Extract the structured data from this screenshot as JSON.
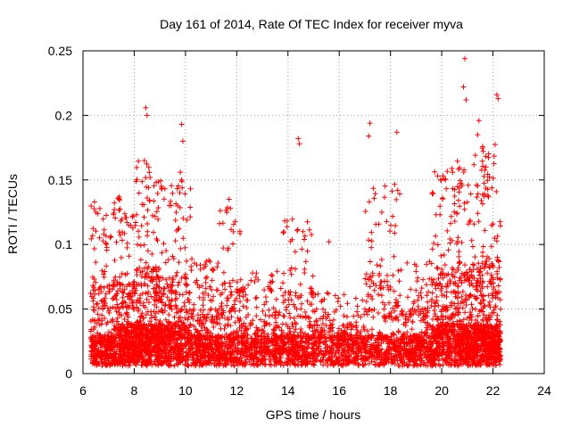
{
  "chart_data": {
    "type": "scatter",
    "title": "Day 161 of 2014, Rate Of TEC Index for receiver myva",
    "xlabel": "GPS time / hours",
    "ylabel": "ROTI / TECUs",
    "xlim": [
      6,
      24
    ],
    "ylim": [
      0,
      0.25
    ],
    "x_ticks": [
      6,
      8,
      10,
      12,
      14,
      16,
      18,
      20,
      22,
      24
    ],
    "y_ticks": [
      0,
      0.05,
      0.1,
      0.15,
      0.2,
      0.25
    ],
    "x_tick_labels": [
      "6",
      "8",
      "10",
      "12",
      "14",
      "16",
      "18",
      "20",
      "22",
      "24"
    ],
    "y_tick_labels": [
      "0",
      "0.05",
      "0.1",
      "0.15",
      "0.2",
      "0.25"
    ],
    "grid": true,
    "marker": "+",
    "color": "#ff0000",
    "series": [
      {
        "name": "ROTI",
        "x_range": [
          6.3,
          22.3
        ],
        "notable_points": [
          {
            "x": 6.45,
            "y": 0.133
          },
          {
            "x": 6.5,
            "y": 0.125
          },
          {
            "x": 8.45,
            "y": 0.206
          },
          {
            "x": 8.5,
            "y": 0.2
          },
          {
            "x": 8.4,
            "y": 0.165
          },
          {
            "x": 9.85,
            "y": 0.193
          },
          {
            "x": 9.9,
            "y": 0.18
          },
          {
            "x": 9.8,
            "y": 0.156
          },
          {
            "x": 11.7,
            "y": 0.135
          },
          {
            "x": 11.75,
            "y": 0.128
          },
          {
            "x": 14.4,
            "y": 0.182
          },
          {
            "x": 14.45,
            "y": 0.178
          },
          {
            "x": 15.6,
            "y": 0.102
          },
          {
            "x": 17.2,
            "y": 0.194
          },
          {
            "x": 17.15,
            "y": 0.184
          },
          {
            "x": 18.25,
            "y": 0.187
          },
          {
            "x": 20.9,
            "y": 0.244
          },
          {
            "x": 20.85,
            "y": 0.222
          },
          {
            "x": 20.95,
            "y": 0.212
          },
          {
            "x": 21.45,
            "y": 0.196
          },
          {
            "x": 21.4,
            "y": 0.185
          },
          {
            "x": 22.15,
            "y": 0.216
          },
          {
            "x": 22.2,
            "y": 0.213
          }
        ],
        "clusters": [
          {
            "x0": 6.3,
            "x1": 7.2,
            "base": 0.015,
            "peak": 0.13,
            "n": 320
          },
          {
            "x0": 7.2,
            "x1": 8.0,
            "base": 0.02,
            "peak": 0.14,
            "n": 380
          },
          {
            "x0": 8.0,
            "x1": 9.0,
            "base": 0.02,
            "peak": 0.165,
            "n": 520
          },
          {
            "x0": 9.0,
            "x1": 10.2,
            "base": 0.02,
            "peak": 0.15,
            "n": 480
          },
          {
            "x0": 10.2,
            "x1": 11.3,
            "base": 0.015,
            "peak": 0.09,
            "n": 360
          },
          {
            "x0": 11.3,
            "x1": 12.3,
            "base": 0.015,
            "peak": 0.13,
            "n": 300
          },
          {
            "x0": 12.3,
            "x1": 13.8,
            "base": 0.015,
            "peak": 0.08,
            "n": 360
          },
          {
            "x0": 13.8,
            "x1": 15.0,
            "base": 0.015,
            "peak": 0.12,
            "n": 330
          },
          {
            "x0": 15.0,
            "x1": 17.0,
            "base": 0.015,
            "peak": 0.065,
            "n": 420
          },
          {
            "x0": 17.0,
            "x1": 18.4,
            "base": 0.015,
            "peak": 0.15,
            "n": 360
          },
          {
            "x0": 18.4,
            "x1": 19.6,
            "base": 0.015,
            "peak": 0.09,
            "n": 340
          },
          {
            "x0": 19.6,
            "x1": 20.6,
            "base": 0.02,
            "peak": 0.16,
            "n": 420
          },
          {
            "x0": 20.6,
            "x1": 21.5,
            "base": 0.02,
            "peak": 0.17,
            "n": 480
          },
          {
            "x0": 21.5,
            "x1": 22.3,
            "base": 0.02,
            "peak": 0.18,
            "n": 460
          }
        ]
      }
    ]
  }
}
